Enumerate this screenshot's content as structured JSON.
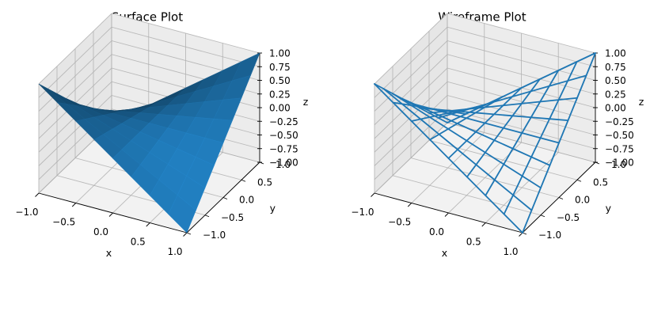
{
  "chart_data": [
    {
      "type": "surface3d",
      "title": "Surface Plot",
      "function": "z = x * y",
      "xlabel": "x",
      "ylabel": "y",
      "zlabel": "z",
      "xlim": [
        -1.0,
        1.0
      ],
      "ylim": [
        -1.0,
        1.0
      ],
      "zlim": [
        -1.0,
        1.0
      ],
      "x_grid": [
        -1.0,
        -0.75,
        -0.5,
        -0.25,
        0.0,
        0.25,
        0.5,
        0.75,
        1.0
      ],
      "y_grid": [
        -1.0,
        -0.75,
        -0.5,
        -0.25,
        0.0,
        0.25,
        0.5,
        0.75,
        1.0
      ],
      "xticks": [
        "−1.0",
        "−0.5",
        "0.0",
        "0.5",
        "1.0"
      ],
      "xtick_values": [
        -1.0,
        -0.5,
        0.0,
        0.5,
        1.0
      ],
      "yticks": [
        "−1.0",
        "−0.5",
        "0.0",
        "0.5",
        "1.0"
      ],
      "ytick_values": [
        -1.0,
        -0.5,
        0.0,
        0.5,
        1.0
      ],
      "zticks": [
        "−1.00",
        "−0.75",
        "−0.50",
        "−0.25",
        "0.00",
        "0.25",
        "0.50",
        "0.75",
        "1.00"
      ],
      "ztick_values": [
        -1.0,
        -0.75,
        -0.5,
        -0.25,
        0.0,
        0.25,
        0.5,
        0.75,
        1.0
      ],
      "color": "#1f77b4"
    },
    {
      "type": "wireframe3d",
      "title": "Wireframe Plot",
      "function": "z = x * y",
      "xlabel": "x",
      "ylabel": "y",
      "zlabel": "z",
      "xlim": [
        -1.0,
        1.0
      ],
      "ylim": [
        -1.0,
        1.0
      ],
      "zlim": [
        -1.0,
        1.0
      ],
      "x_grid": [
        -1.0,
        -0.75,
        -0.5,
        -0.25,
        0.0,
        0.25,
        0.5,
        0.75,
        1.0
      ],
      "y_grid": [
        -1.0,
        -0.75,
        -0.5,
        -0.25,
        0.0,
        0.25,
        0.5,
        0.75,
        1.0
      ],
      "xticks": [
        "−1.0",
        "−0.5",
        "0.0",
        "0.5",
        "1.0"
      ],
      "xtick_values": [
        -1.0,
        -0.5,
        0.0,
        0.5,
        1.0
      ],
      "yticks": [
        "−1.0",
        "−0.5",
        "0.0",
        "0.5",
        "1.0"
      ],
      "ytick_values": [
        -1.0,
        -0.5,
        0.0,
        0.5,
        1.0
      ],
      "zticks": [
        "−1.00",
        "−0.75",
        "−0.50",
        "−0.25",
        "0.00",
        "0.25",
        "0.50",
        "0.75",
        "1.00"
      ],
      "ztick_values": [
        -1.0,
        -0.75,
        -0.5,
        -0.25,
        0.0,
        0.25,
        0.5,
        0.75,
        1.0
      ],
      "color": "#1f77b4"
    }
  ]
}
